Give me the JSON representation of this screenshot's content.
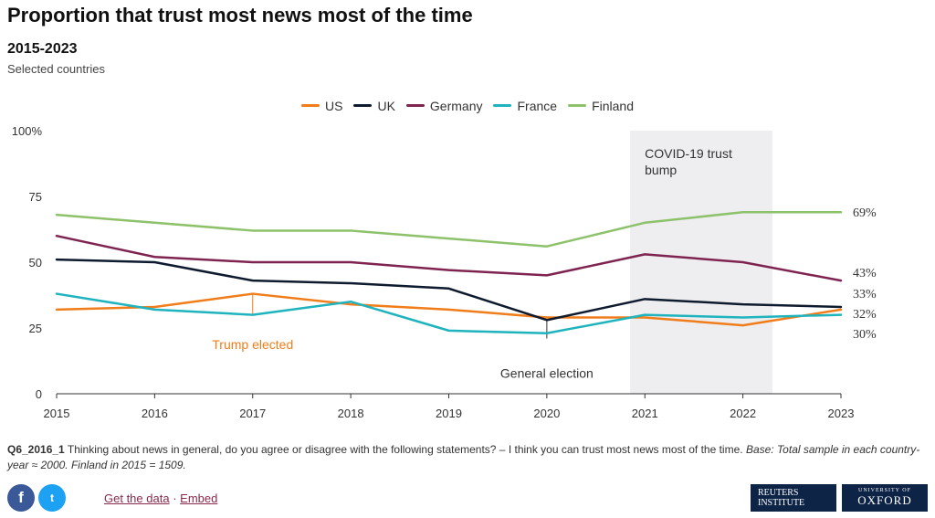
{
  "header": {
    "title": "Proportion that trust most news most of the time",
    "subtitle": "2015-2023",
    "description": "Selected countries"
  },
  "chart_data": {
    "type": "line",
    "title": "Proportion that trust most news most of the time",
    "subtitle": "2015-2023",
    "x": [
      2015,
      2016,
      2017,
      2018,
      2019,
      2020,
      2021,
      2022,
      2023
    ],
    "ylim": [
      0,
      100
    ],
    "yticks": [
      0,
      25,
      50,
      75,
      100
    ],
    "ytick_labels": [
      "0",
      "25",
      "50",
      "75",
      "100%"
    ],
    "legend_position": "top-center",
    "grid": false,
    "series": [
      {
        "name": "US",
        "color": "#f07d1a",
        "values": [
          32,
          33,
          38,
          34,
          32,
          29,
          29,
          26,
          32
        ]
      },
      {
        "name": "UK",
        "color": "#0e1a2e",
        "values": [
          51,
          50,
          43,
          42,
          40,
          28,
          36,
          34,
          33
        ]
      },
      {
        "name": "Germany",
        "color": "#7f2350",
        "values": [
          60,
          52,
          50,
          50,
          47,
          45,
          53,
          50,
          43
        ]
      },
      {
        "name": "France",
        "color": "#1fb3be",
        "values": [
          38,
          32,
          30,
          35,
          24,
          23,
          30,
          29,
          30
        ]
      },
      {
        "name": "Finland",
        "color": "#8dc26b",
        "values": [
          68,
          65,
          62,
          62,
          59,
          56,
          65,
          69,
          69
        ]
      }
    ],
    "end_labels": [
      "69%",
      "43%",
      "33%",
      "32%",
      "30%"
    ],
    "shaded_band": {
      "from": 2020.85,
      "to": 2022.3,
      "label_lines": [
        "COVID-19 trust",
        "bump"
      ],
      "color": "#eeeef1"
    },
    "annotations": [
      {
        "text": "Trump elected",
        "x": 2017,
        "y_from": 30,
        "y_to": 38,
        "color": "#f07d1a",
        "label_y": 17,
        "anchor": "middle"
      },
      {
        "text": "General election",
        "x": 2020,
        "y_from": 28,
        "y_to": 21,
        "color": "#333333",
        "label_y": 6,
        "anchor": "middle"
      }
    ]
  },
  "footnote": {
    "code": "Q6_2016_1",
    "question": "Thinking about news in general, do you agree or disagree with the following statements? – I think you can trust most news most of the time.",
    "base": "Base: Total sample in each country-year ≈ 2000. Finland in 2015 = 1509."
  },
  "footer": {
    "facebook_glyph": "f",
    "twitter_glyph": "t",
    "get_data": "Get the data",
    "separator": "·",
    "embed": "Embed",
    "logo_reuters": [
      "REUTERS",
      "INSTITUTE"
    ],
    "logo_oxford_small": "UNIVERSITY OF",
    "logo_oxford_big": "OXFORD"
  }
}
